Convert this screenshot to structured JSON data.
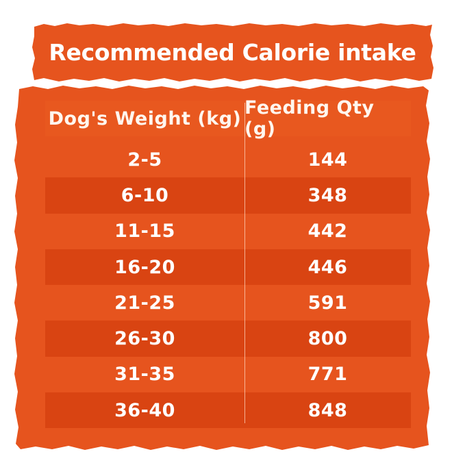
{
  "header": {
    "title": "Recommended Calorie intake"
  },
  "table": {
    "columns": [
      "Dog's Weight (kg)",
      "Feeding Qty (g)"
    ],
    "rows": [
      [
        "2-5",
        "144"
      ],
      [
        "6-10",
        "348"
      ],
      [
        "11-15",
        "442"
      ],
      [
        "16-20",
        "446"
      ],
      [
        "21-25",
        "591"
      ],
      [
        "26-30",
        "800"
      ],
      [
        "31-35",
        "771"
      ],
      [
        "36-40",
        "848"
      ]
    ]
  },
  "colors": {
    "panel": "#e6541e",
    "header_cell": "#e8581f",
    "shaded_row": "#d94412",
    "text": "#ffffff",
    "background": "#ffffff"
  }
}
